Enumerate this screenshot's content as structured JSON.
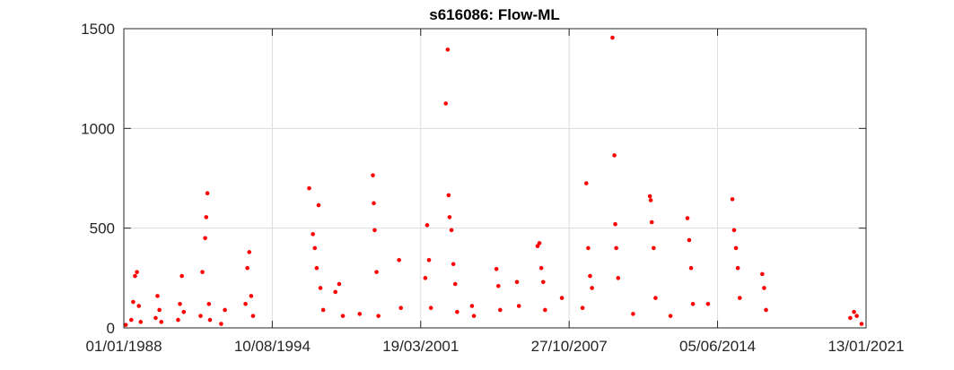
{
  "chart_data": {
    "type": "scatter",
    "title": "s616086: Flow-ML",
    "xlabel": "",
    "ylabel": "",
    "xlim": [
      "1988-01-01",
      "2021-01-13"
    ],
    "ylim": [
      0,
      1500
    ],
    "x_ticks": [
      "1988-01-01",
      "1994-08-10",
      "2001-03-19",
      "2007-10-27",
      "2014-06-05",
      "2021-01-13"
    ],
    "x_tick_labels": [
      "01/01/1988",
      "10/08/1994",
      "19/03/2001",
      "27/10/2007",
      "05/06/2014",
      "13/01/2021"
    ],
    "y_ticks": [
      0,
      500,
      1000,
      1500
    ],
    "y_tick_labels": [
      "0",
      "500",
      "1000",
      "1500"
    ],
    "grid": true,
    "marker_color": "#ff0000",
    "series": [
      {
        "points": [
          [
            "1988-02-01",
            15
          ],
          [
            "1988-05-01",
            40
          ],
          [
            "1988-06-01",
            130
          ],
          [
            "1988-07-01",
            260
          ],
          [
            "1988-08-01",
            280
          ],
          [
            "1988-09-01",
            110
          ],
          [
            "1988-10-01",
            30
          ],
          [
            "1989-06-01",
            50
          ],
          [
            "1989-07-01",
            160
          ],
          [
            "1989-08-01",
            90
          ],
          [
            "1989-09-01",
            30
          ],
          [
            "1990-06-01",
            40
          ],
          [
            "1990-07-01",
            120
          ],
          [
            "1990-08-01",
            260
          ],
          [
            "1990-09-01",
            80
          ],
          [
            "1991-06-01",
            60
          ],
          [
            "1991-07-01",
            280
          ],
          [
            "1991-08-15",
            450
          ],
          [
            "1991-09-01",
            555
          ],
          [
            "1991-09-20",
            675
          ],
          [
            "1991-10-15",
            120
          ],
          [
            "1991-11-01",
            40
          ],
          [
            "1992-05-01",
            20
          ],
          [
            "1992-07-01",
            90
          ],
          [
            "1993-06-01",
            120
          ],
          [
            "1993-07-01",
            300
          ],
          [
            "1993-08-01",
            380
          ],
          [
            "1993-09-01",
            160
          ],
          [
            "1993-10-01",
            60
          ],
          [
            "1996-04-01",
            700
          ],
          [
            "1996-06-01",
            470
          ],
          [
            "1996-07-01",
            400
          ],
          [
            "1996-08-01",
            300
          ],
          [
            "1996-09-01",
            615
          ],
          [
            "1996-10-01",
            200
          ],
          [
            "1996-11-15",
            90
          ],
          [
            "1997-06-01",
            180
          ],
          [
            "1997-08-01",
            220
          ],
          [
            "1997-10-01",
            60
          ],
          [
            "1998-07-01",
            70
          ],
          [
            "1999-02-01",
            765
          ],
          [
            "1999-02-15",
            625
          ],
          [
            "1999-03-01",
            490
          ],
          [
            "1999-04-01",
            280
          ],
          [
            "1999-05-01",
            60
          ],
          [
            "2000-04-01",
            340
          ],
          [
            "2000-05-01",
            100
          ],
          [
            "2001-06-01",
            250
          ],
          [
            "2001-07-01",
            515
          ],
          [
            "2001-08-01",
            340
          ],
          [
            "2001-09-01",
            100
          ],
          [
            "2002-05-01",
            1125
          ],
          [
            "2002-06-01",
            1395
          ],
          [
            "2002-06-15",
            665
          ],
          [
            "2002-07-01",
            555
          ],
          [
            "2002-08-01",
            490
          ],
          [
            "2002-09-01",
            320
          ],
          [
            "2002-10-01",
            220
          ],
          [
            "2002-11-01",
            80
          ],
          [
            "2003-07-01",
            110
          ],
          [
            "2003-08-01",
            60
          ],
          [
            "2004-08-01",
            295
          ],
          [
            "2004-09-01",
            210
          ],
          [
            "2004-10-01",
            90
          ],
          [
            "2005-07-01",
            230
          ],
          [
            "2005-08-01",
            110
          ],
          [
            "2006-06-01",
            410
          ],
          [
            "2006-07-01",
            425
          ],
          [
            "2006-08-01",
            300
          ],
          [
            "2006-09-01",
            230
          ],
          [
            "2006-10-01",
            90
          ],
          [
            "2007-07-01",
            150
          ],
          [
            "2008-06-01",
            100
          ],
          [
            "2008-08-01",
            725
          ],
          [
            "2008-09-01",
            400
          ],
          [
            "2008-10-01",
            260
          ],
          [
            "2008-11-01",
            200
          ],
          [
            "2009-10-01",
            1455
          ],
          [
            "2009-11-01",
            865
          ],
          [
            "2009-11-15",
            520
          ],
          [
            "2009-12-01",
            400
          ],
          [
            "2010-01-01",
            250
          ],
          [
            "2010-09-01",
            70
          ],
          [
            "2011-06-01",
            660
          ],
          [
            "2011-06-15",
            640
          ],
          [
            "2011-07-01",
            530
          ],
          [
            "2011-08-01",
            400
          ],
          [
            "2011-09-01",
            150
          ],
          [
            "2012-05-01",
            60
          ],
          [
            "2013-02-01",
            550
          ],
          [
            "2013-03-01",
            440
          ],
          [
            "2013-04-01",
            300
          ],
          [
            "2013-05-01",
            120
          ],
          [
            "2014-01-01",
            120
          ],
          [
            "2015-02-01",
            645
          ],
          [
            "2015-03-01",
            490
          ],
          [
            "2015-04-01",
            400
          ],
          [
            "2015-05-01",
            300
          ],
          [
            "2015-06-01",
            150
          ],
          [
            "2016-06-01",
            270
          ],
          [
            "2016-07-01",
            200
          ],
          [
            "2016-08-01",
            90
          ],
          [
            "2020-05-01",
            50
          ],
          [
            "2020-07-01",
            80
          ],
          [
            "2020-08-15",
            60
          ],
          [
            "2020-11-01",
            20
          ]
        ]
      }
    ]
  }
}
